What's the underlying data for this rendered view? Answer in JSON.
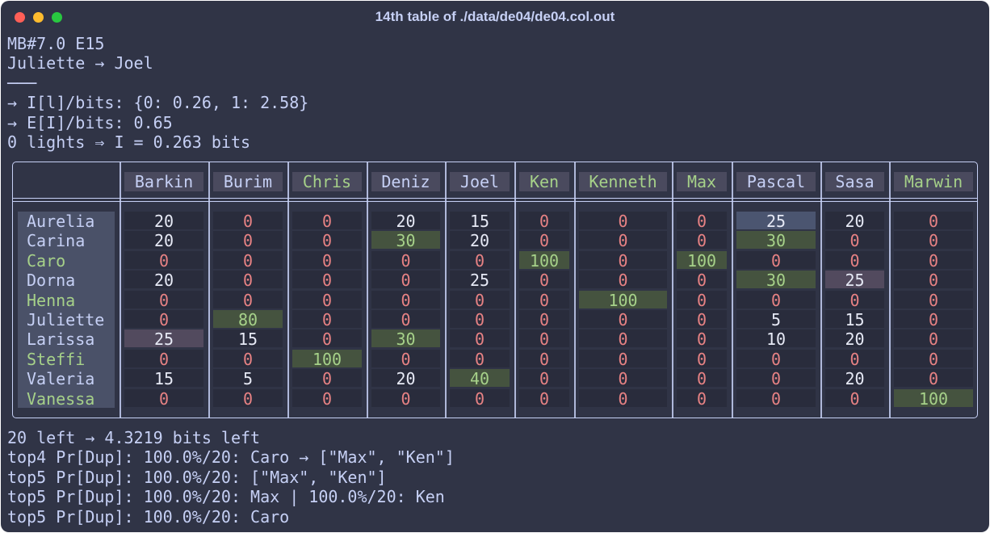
{
  "title": "14th table of ./data/de04/de04.col.out",
  "lines": [
    "MB#7.0 E15",
    "Juliette → Joel",
    "───",
    "→ I[l]/bits: {0: 0.26, 1: 2.58}",
    "→ E[I]/bits: 0.65",
    "0 lights ⇒ I = 0.263 bits"
  ],
  "table": {
    "columns": [
      "Barkin",
      "Burim",
      "Chris",
      "Deniz",
      "Joel",
      "Ken",
      "Kenneth",
      "Max",
      "Pascal",
      "Sasa",
      "Marwin"
    ],
    "rows": [
      {
        "name": "Aurelia",
        "cells": [
          20,
          0,
          0,
          20,
          15,
          0,
          0,
          0,
          25,
          20,
          0
        ]
      },
      {
        "name": "Carina",
        "cells": [
          20,
          0,
          0,
          30,
          20,
          0,
          0,
          0,
          30,
          0,
          0
        ]
      },
      {
        "name": "Caro",
        "cells": [
          0,
          0,
          0,
          0,
          0,
          100,
          0,
          100,
          0,
          0,
          0
        ]
      },
      {
        "name": "Dorna",
        "cells": [
          20,
          0,
          0,
          0,
          25,
          0,
          0,
          0,
          30,
          25,
          0
        ]
      },
      {
        "name": "Henna",
        "cells": [
          0,
          0,
          0,
          0,
          0,
          0,
          100,
          0,
          0,
          0,
          0
        ]
      },
      {
        "name": "Juliette",
        "cells": [
          0,
          80,
          0,
          0,
          0,
          0,
          0,
          0,
          5,
          15,
          0
        ]
      },
      {
        "name": "Larissa",
        "cells": [
          25,
          15,
          0,
          30,
          0,
          0,
          0,
          0,
          10,
          20,
          0
        ]
      },
      {
        "name": "Steffi",
        "cells": [
          0,
          0,
          100,
          0,
          0,
          0,
          0,
          0,
          0,
          0,
          0
        ]
      },
      {
        "name": "Valeria",
        "cells": [
          15,
          5,
          0,
          20,
          40,
          0,
          0,
          0,
          0,
          20,
          0
        ]
      },
      {
        "name": "Vanessa",
        "cells": [
          0,
          0,
          0,
          0,
          0,
          0,
          0,
          0,
          0,
          0,
          100
        ]
      }
    ]
  },
  "footer": [
    "20 left → 4.3219 bits left",
    "top4 Pr[Dup]: 100.0%/20: Caro → [\"Max\", \"Ken\"]",
    "top5 Pr[Dup]: 100.0%/20: [\"Max\", \"Ken\"]",
    "top5 Pr[Dup]: 100.0%/20: Max | 100.0%/20: Ken",
    "top5 Pr[Dup]: 100.0%/20: Caro"
  ]
}
